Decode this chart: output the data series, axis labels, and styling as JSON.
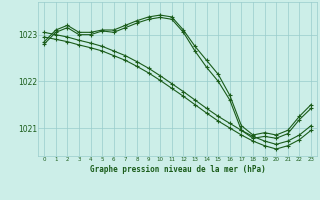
{
  "title": "Graphe pression niveau de la mer (hPa)",
  "bg_color": "#cceee8",
  "grid_color": "#99cccc",
  "line_color": "#1a5c1a",
  "xlim": [
    -0.5,
    23.5
  ],
  "ylim": [
    1020.4,
    1023.7
  ],
  "yticks": [
    1021,
    1022,
    1023
  ],
  "xticks": [
    0,
    1,
    2,
    3,
    4,
    5,
    6,
    7,
    8,
    9,
    10,
    11,
    12,
    13,
    14,
    15,
    16,
    17,
    18,
    19,
    20,
    21,
    22,
    23
  ],
  "series": [
    {
      "x": [
        0,
        1,
        2,
        3,
        4,
        5,
        6,
        7,
        8,
        9,
        10,
        11,
        12,
        13,
        14,
        15,
        16,
        17,
        18,
        19,
        20,
        21,
        22,
        23
      ],
      "y": [
        1022.85,
        1023.1,
        1023.2,
        1023.05,
        1023.05,
        1023.1,
        1023.1,
        1023.2,
        1023.3,
        1023.38,
        1023.42,
        1023.38,
        1023.1,
        1022.75,
        1022.45,
        1022.15,
        1021.7,
        1021.05,
        1020.85,
        1020.9,
        1020.85,
        1020.95,
        1021.25,
        1021.5
      ]
    },
    {
      "x": [
        0,
        1,
        2,
        3,
        4,
        5,
        6,
        7,
        8,
        9,
        10,
        11,
        12,
        13,
        14,
        15,
        16,
        17,
        18,
        19,
        20,
        21,
        22,
        23
      ],
      "y": [
        1022.8,
        1023.05,
        1023.15,
        1023.0,
        1023.0,
        1023.08,
        1023.05,
        1023.15,
        1023.25,
        1023.33,
        1023.37,
        1023.33,
        1023.05,
        1022.65,
        1022.3,
        1022.0,
        1021.6,
        1020.95,
        1020.78,
        1020.82,
        1020.78,
        1020.88,
        1021.18,
        1021.42
      ]
    },
    {
      "x": [
        0,
        1,
        2,
        3,
        4,
        5,
        6,
        7,
        8,
        9,
        10,
        11,
        12,
        13,
        14,
        15,
        16,
        17,
        18,
        19,
        20,
        21,
        22,
        23
      ],
      "y": [
        1023.05,
        1023.0,
        1022.95,
        1022.88,
        1022.82,
        1022.75,
        1022.65,
        1022.55,
        1022.42,
        1022.28,
        1022.12,
        1021.95,
        1021.78,
        1021.6,
        1021.42,
        1021.25,
        1021.1,
        1020.95,
        1020.82,
        1020.72,
        1020.65,
        1020.72,
        1020.85,
        1021.05
      ]
    },
    {
      "x": [
        0,
        1,
        2,
        3,
        4,
        5,
        6,
        7,
        8,
        9,
        10,
        11,
        12,
        13,
        14,
        15,
        16,
        17,
        18,
        19,
        20,
        21,
        22,
        23
      ],
      "y": [
        1022.95,
        1022.9,
        1022.85,
        1022.78,
        1022.72,
        1022.65,
        1022.55,
        1022.45,
        1022.32,
        1022.18,
        1022.02,
        1021.85,
        1021.68,
        1021.5,
        1021.32,
        1021.15,
        1021.0,
        1020.85,
        1020.72,
        1020.62,
        1020.55,
        1020.62,
        1020.75,
        1020.95
      ]
    }
  ]
}
